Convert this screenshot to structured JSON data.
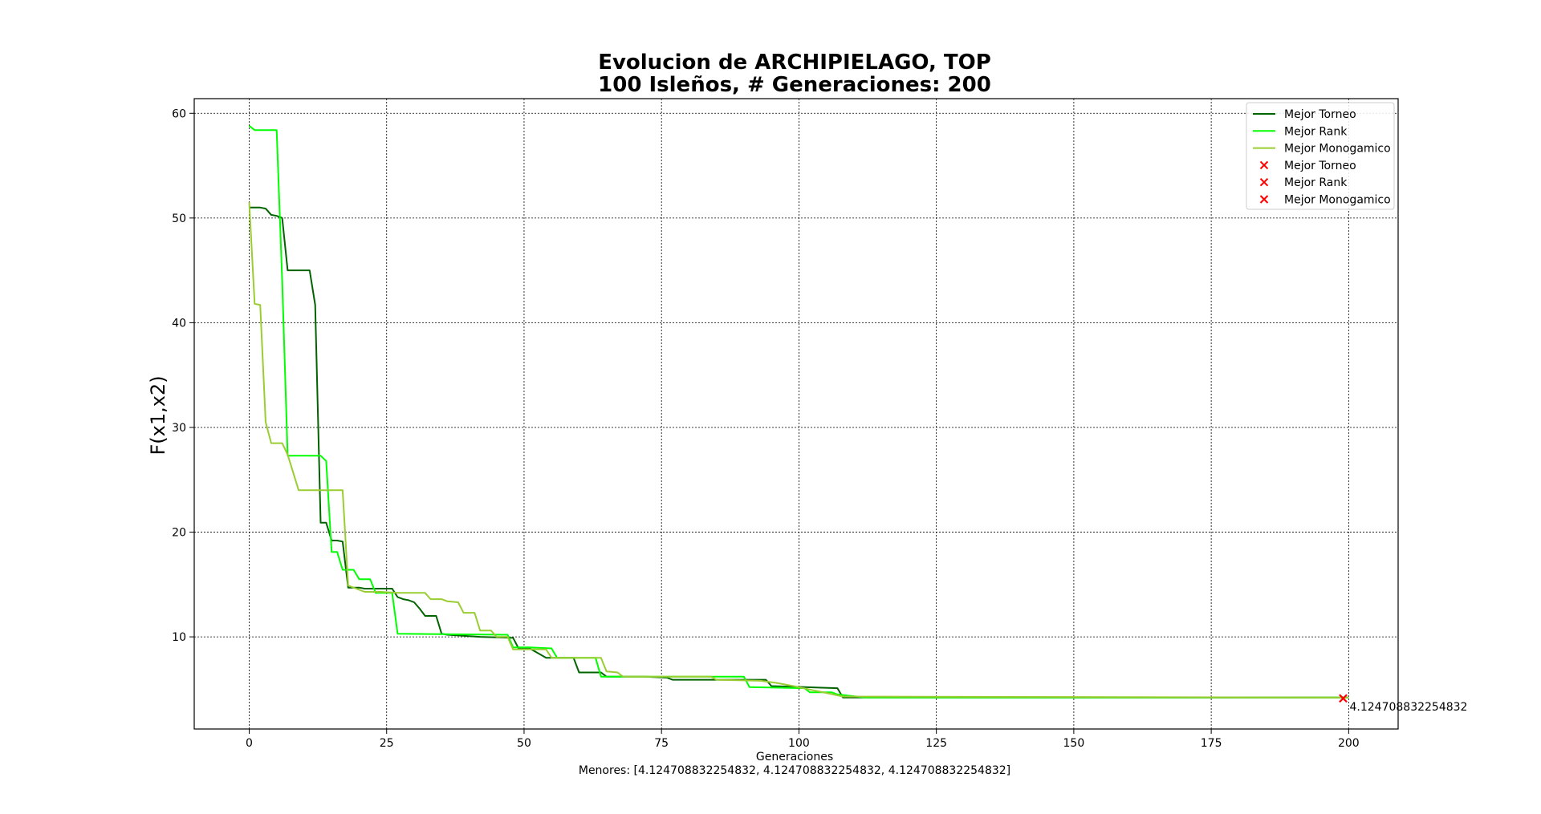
{
  "chart_data": {
    "type": "line",
    "title_line1": "Evolucion de ARCHIPIELAGO, TOP",
    "title_line2": "100 Isleños, # Generaciones: 200",
    "xlabel": "Generaciones",
    "ylabel": "F(x1,x2)",
    "footer": "Menores: [4.124708832254832, 4.124708832254832, 4.124708832254832]",
    "xlim": [
      -10,
      209
    ],
    "ylim": [
      1.2,
      61.4
    ],
    "xticks": [
      0,
      25,
      50,
      75,
      100,
      125,
      150,
      175,
      200
    ],
    "yticks": [
      10,
      20,
      30,
      40,
      50,
      60
    ],
    "grid": true,
    "grid_style": "dotted",
    "legend_position": "top-right",
    "legend": [
      {
        "label": "Mejor Torneo",
        "kind": "line",
        "color": "#006400"
      },
      {
        "label": "Mejor Rank",
        "kind": "line",
        "color": "#00ff00"
      },
      {
        "label": "Mejor Monogamico",
        "kind": "line",
        "color": "#9acd32"
      },
      {
        "label": "Mejor Torneo",
        "kind": "marker",
        "color": "#ff0000"
      },
      {
        "label": "Mejor Rank",
        "kind": "marker",
        "color": "#ff0000"
      },
      {
        "label": "Mejor Monogamico",
        "kind": "marker",
        "color": "#ff0000"
      }
    ],
    "series": [
      {
        "name": "Mejor Torneo",
        "color": "#006400",
        "points": [
          [
            0,
            51.0
          ],
          [
            2,
            51.0
          ],
          [
            3,
            50.9
          ],
          [
            4,
            50.3
          ],
          [
            5,
            50.2
          ],
          [
            6,
            50.0
          ],
          [
            7,
            45.0
          ],
          [
            8,
            45.0
          ],
          [
            11,
            45.0
          ],
          [
            12,
            41.7
          ],
          [
            13,
            20.9
          ],
          [
            14,
            20.9
          ],
          [
            15,
            19.2
          ],
          [
            16,
            19.2
          ],
          [
            17,
            19.1
          ],
          [
            18,
            14.7
          ],
          [
            20,
            14.7
          ],
          [
            21,
            14.6
          ],
          [
            26,
            14.6
          ],
          [
            27,
            13.8
          ],
          [
            28,
            13.6
          ],
          [
            29,
            13.5
          ],
          [
            30,
            13.3
          ],
          [
            31,
            12.7
          ],
          [
            32,
            12.0
          ],
          [
            33,
            12.0
          ],
          [
            34,
            12.0
          ],
          [
            35,
            10.3
          ],
          [
            36,
            10.2
          ],
          [
            42,
            10.0
          ],
          [
            48,
            9.9
          ],
          [
            49,
            8.9
          ],
          [
            51,
            8.9
          ],
          [
            52,
            8.6
          ],
          [
            53,
            8.3
          ],
          [
            54,
            8.0
          ],
          [
            59,
            8.0
          ],
          [
            60,
            6.6
          ],
          [
            64,
            6.6
          ],
          [
            65,
            6.2
          ],
          [
            71,
            6.2
          ],
          [
            72,
            6.2
          ],
          [
            76,
            6.1
          ],
          [
            77,
            5.9
          ],
          [
            94,
            5.9
          ],
          [
            95,
            5.3
          ],
          [
            101,
            5.2
          ],
          [
            107,
            5.1
          ],
          [
            108,
            4.2
          ],
          [
            200,
            4.2
          ]
        ]
      },
      {
        "name": "Mejor Rank",
        "color": "#00ff00",
        "points": [
          [
            0,
            58.8
          ],
          [
            1,
            58.4
          ],
          [
            5,
            58.4
          ],
          [
            6,
            44.0
          ],
          [
            7,
            27.3
          ],
          [
            13,
            27.3
          ],
          [
            14,
            26.8
          ],
          [
            15,
            18.1
          ],
          [
            16,
            18.1
          ],
          [
            17,
            16.4
          ],
          [
            19,
            16.4
          ],
          [
            20,
            15.5
          ],
          [
            22,
            15.5
          ],
          [
            23,
            14.2
          ],
          [
            26,
            14.2
          ],
          [
            27,
            10.3
          ],
          [
            47,
            10.2
          ],
          [
            48,
            9.0
          ],
          [
            51,
            9.0
          ],
          [
            55,
            8.9
          ],
          [
            56,
            8.0
          ],
          [
            63,
            8.0
          ],
          [
            64,
            6.2
          ],
          [
            90,
            6.2
          ],
          [
            91,
            5.2
          ],
          [
            101,
            5.1
          ],
          [
            102,
            4.7
          ],
          [
            106,
            4.7
          ],
          [
            107,
            4.5
          ],
          [
            112,
            4.2
          ],
          [
            200,
            4.2
          ]
        ]
      },
      {
        "name": "Mejor Monogamico",
        "color": "#9acd32",
        "points": [
          [
            0,
            51.5
          ],
          [
            1,
            41.8
          ],
          [
            2,
            41.7
          ],
          [
            3,
            30.5
          ],
          [
            4,
            28.5
          ],
          [
            6,
            28.5
          ],
          [
            7,
            27.4
          ],
          [
            9,
            24.0
          ],
          [
            16,
            24.0
          ],
          [
            17,
            24.0
          ],
          [
            18,
            14.9
          ],
          [
            21,
            14.3
          ],
          [
            24,
            14.3
          ],
          [
            27,
            14.2
          ],
          [
            32,
            14.2
          ],
          [
            33,
            13.6
          ],
          [
            35,
            13.6
          ],
          [
            36,
            13.4
          ],
          [
            38,
            13.3
          ],
          [
            39,
            12.3
          ],
          [
            41,
            12.3
          ],
          [
            42,
            10.6
          ],
          [
            44,
            10.6
          ],
          [
            45,
            10.0
          ],
          [
            47,
            10.0
          ],
          [
            48,
            8.8
          ],
          [
            54,
            8.8
          ],
          [
            55,
            8.0
          ],
          [
            64,
            8.0
          ],
          [
            65,
            6.7
          ],
          [
            67,
            6.6
          ],
          [
            68,
            6.2
          ],
          [
            84,
            6.2
          ],
          [
            85,
            5.9
          ],
          [
            93,
            5.8
          ],
          [
            96,
            5.6
          ],
          [
            99,
            5.3
          ],
          [
            108,
            4.3
          ],
          [
            200,
            4.2
          ]
        ]
      }
    ],
    "best_points": [
      {
        "name": "Mejor Torneo",
        "x": 199,
        "y": 4.124708832254832
      },
      {
        "name": "Mejor Rank",
        "x": 199,
        "y": 4.124708832254832
      },
      {
        "name": "Mejor Monogamico",
        "x": 199,
        "y": 4.124708832254832
      }
    ],
    "point_annotation": "4.124708832254832",
    "marker_color": "#ff0000"
  }
}
